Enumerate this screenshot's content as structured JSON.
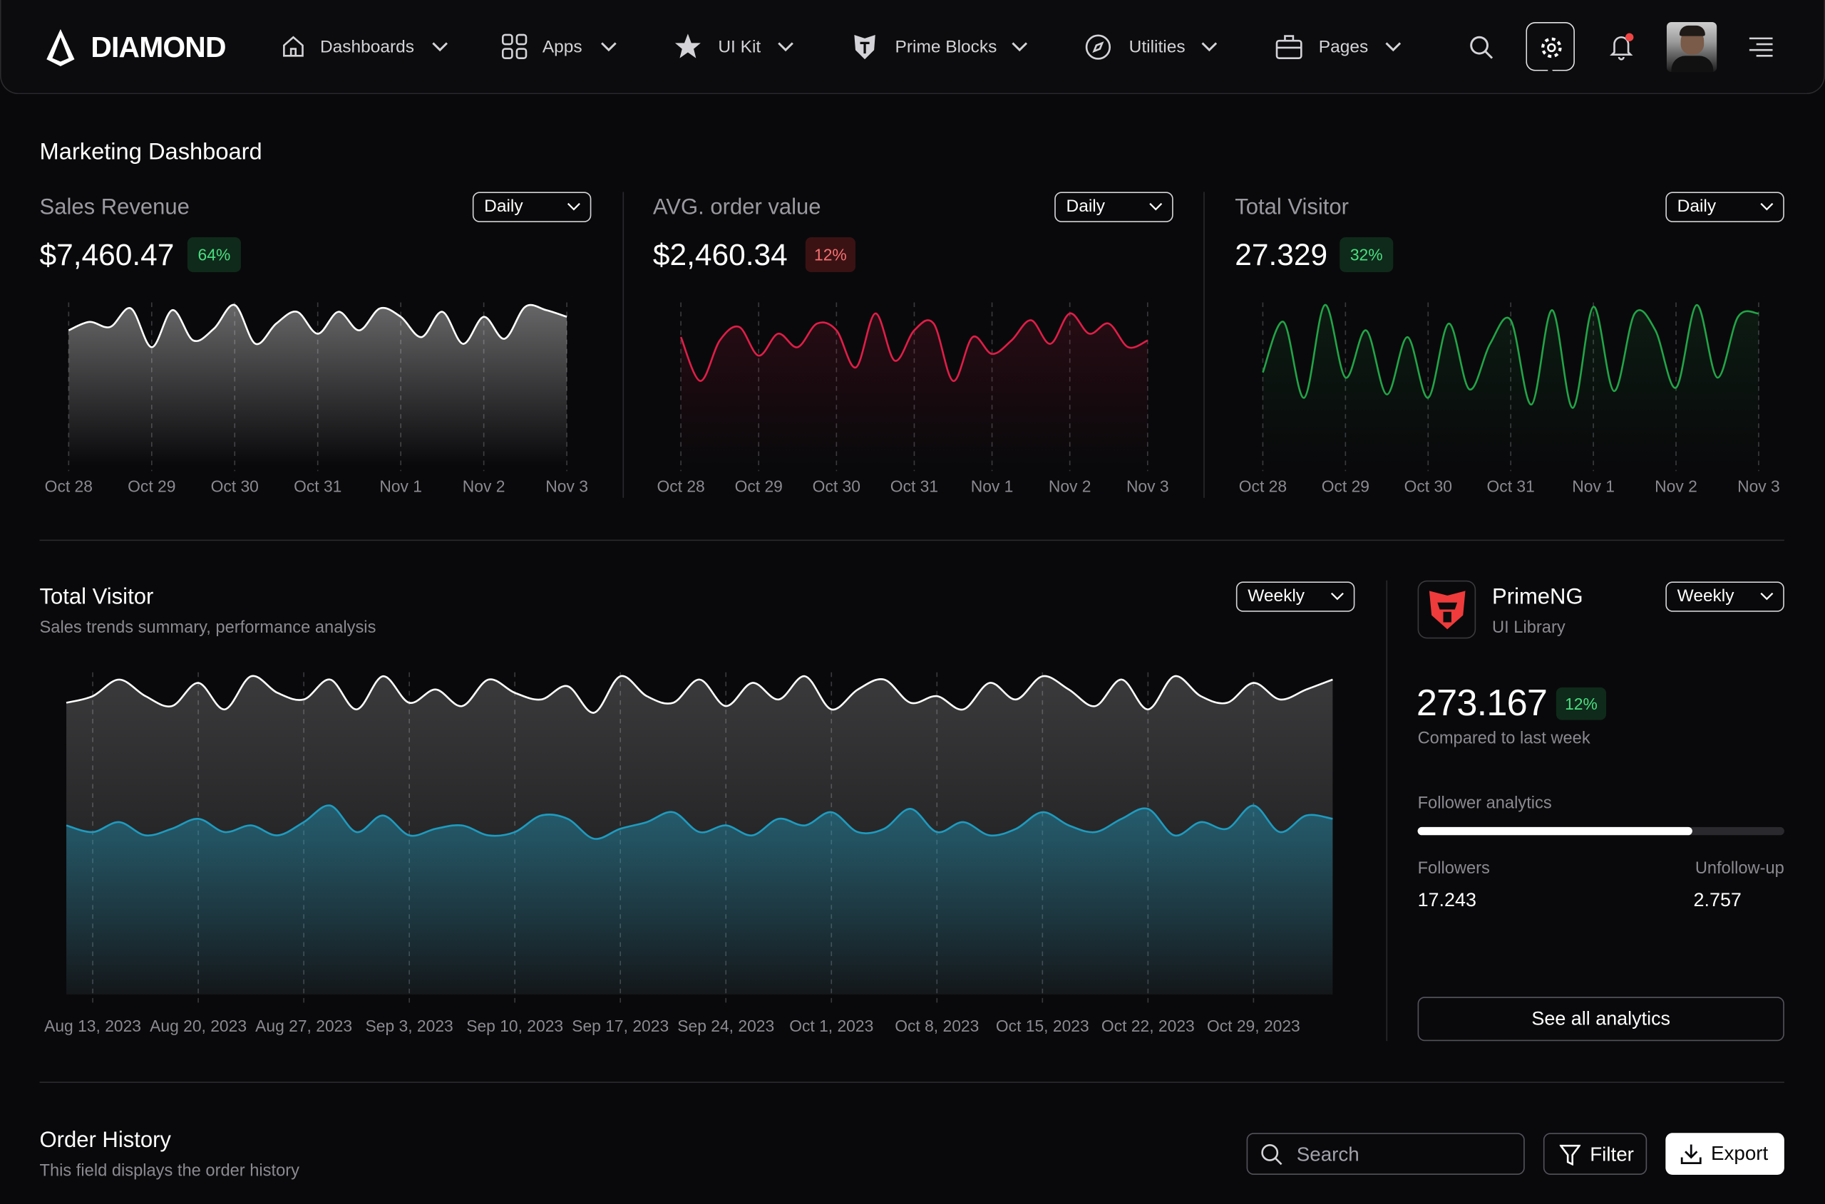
{
  "nav": {
    "brand": "DIAMOND",
    "items": [
      "Dashboards",
      "Apps",
      "UI Kit",
      "Prime Blocks",
      "Utilities",
      "Pages"
    ]
  },
  "page_title": "Marketing Dashboard",
  "cards": [
    {
      "period": "Daily",
      "value": "$7,460.47",
      "badge": "64%"
    },
    {
      "period": "Daily",
      "value": "$2,460.34",
      "badge": "12%"
    },
    {
      "period": "Daily",
      "value": "27.329",
      "badge": "32%"
    }
  ],
  "visitor_panel": {
    "period": "Weekly"
  },
  "chart_data": [
    {
      "type": "area",
      "title": "Sales Revenue",
      "xlim": [
        0,
        6
      ],
      "ylim": [
        0,
        100
      ],
      "xticks": [
        {
          "value": 0,
          "label": "Oct 28"
        },
        {
          "value": 1,
          "label": "Oct 29"
        },
        {
          "value": 2,
          "label": "Oct 30"
        },
        {
          "value": 3,
          "label": "Oct 31"
        },
        {
          "value": 4,
          "label": "Nov 1"
        },
        {
          "value": 5,
          "label": "Nov 2"
        },
        {
          "value": 6,
          "label": "Nov 3"
        }
      ],
      "x": [
        0,
        0.25,
        0.5,
        0.75,
        1,
        1.25,
        1.5,
        1.75,
        2,
        2.25,
        2.5,
        2.75,
        3,
        3.25,
        3.5,
        3.75,
        4,
        4.25,
        4.5,
        4.75,
        5,
        5.25,
        5.5,
        5.75,
        6
      ],
      "series": [
        {
          "color": "#ffffff",
          "values": [
            80,
            85,
            82,
            93,
            70,
            92,
            74,
            81,
            95,
            72,
            84,
            91,
            78,
            91,
            80,
            93,
            88,
            76,
            91,
            72,
            88,
            75,
            94,
            92,
            88
          ]
        }
      ]
    },
    {
      "type": "area",
      "title": "AVG. order value",
      "xlim": [
        0,
        6
      ],
      "ylim": [
        0,
        100
      ],
      "xticks": [
        {
          "value": 0,
          "label": "Oct 28"
        },
        {
          "value": 1,
          "label": "Oct 29"
        },
        {
          "value": 2,
          "label": "Oct 30"
        },
        {
          "value": 3,
          "label": "Oct 31"
        },
        {
          "value": 4,
          "label": "Nov 1"
        },
        {
          "value": 5,
          "label": "Nov 2"
        },
        {
          "value": 6,
          "label": "Nov 3"
        }
      ],
      "x": [
        0,
        0.25,
        0.5,
        0.75,
        1,
        1.25,
        1.5,
        1.75,
        2,
        2.25,
        2.5,
        2.75,
        3,
        3.25,
        3.5,
        3.75,
        4,
        4.25,
        4.5,
        4.75,
        5,
        5.25,
        5.5,
        5.75,
        6
      ],
      "series": [
        {
          "color": "#e11d48",
          "values": [
            76,
            50,
            74,
            82,
            65,
            78,
            70,
            84,
            80,
            58,
            90,
            62,
            80,
            84,
            50,
            76,
            66,
            74,
            86,
            72,
            90,
            78,
            84,
            70,
            74
          ]
        }
      ]
    },
    {
      "type": "area",
      "title": "Total Visitor",
      "xlim": [
        0,
        6
      ],
      "ylim": [
        0,
        100
      ],
      "xticks": [
        {
          "value": 0,
          "label": "Oct 28"
        },
        {
          "value": 1,
          "label": "Oct 29"
        },
        {
          "value": 2,
          "label": "Oct 30"
        },
        {
          "value": 3,
          "label": "Oct 31"
        },
        {
          "value": 4,
          "label": "Nov 1"
        },
        {
          "value": 5,
          "label": "Nov 2"
        },
        {
          "value": 6,
          "label": "Nov 3"
        }
      ],
      "x": [
        0,
        0.25,
        0.5,
        0.75,
        1,
        1.25,
        1.5,
        1.75,
        2,
        2.25,
        2.5,
        2.75,
        3,
        3.25,
        3.5,
        3.75,
        4,
        4.25,
        4.5,
        4.75,
        5,
        5.25,
        5.5,
        5.75,
        6
      ],
      "series": [
        {
          "color": "#22a447",
          "values": [
            55,
            85,
            40,
            95,
            52,
            80,
            42,
            76,
            40,
            84,
            45,
            72,
            86,
            36,
            92,
            34,
            94,
            44,
            90,
            80,
            46,
            95,
            52,
            88,
            90
          ]
        }
      ]
    },
    {
      "type": "area",
      "title": "Total Visitor",
      "subtitle": "Sales trends summary, performance analysis",
      "xlim": [
        -0.25,
        11.75
      ],
      "ylim": [
        0,
        100
      ],
      "xticks": [
        {
          "value": 0,
          "label": "Aug 13, 2023"
        },
        {
          "value": 1,
          "label": "Aug 20, 2023"
        },
        {
          "value": 2,
          "label": "Aug 27, 2023"
        },
        {
          "value": 3,
          "label": "Sep 3, 2023"
        },
        {
          "value": 4,
          "label": "Sep 10, 2023"
        },
        {
          "value": 5,
          "label": "Sep 17, 2023"
        },
        {
          "value": 6,
          "label": "Sep 24, 2023"
        },
        {
          "value": 7,
          "label": "Oct 1, 2023"
        },
        {
          "value": 8,
          "label": "Oct 8, 2023"
        },
        {
          "value": 9,
          "label": "Oct 15, 2023"
        },
        {
          "value": 10,
          "label": "Oct 22, 2023"
        },
        {
          "value": 11,
          "label": "Oct 29, 2023"
        }
      ],
      "x": [
        -0.25,
        0,
        0.25,
        0.5,
        0.75,
        1,
        1.25,
        1.5,
        1.75,
        2,
        2.25,
        2.5,
        2.75,
        3,
        3.25,
        3.5,
        3.75,
        4,
        4.25,
        4.5,
        4.75,
        5,
        5.25,
        5.5,
        5.75,
        6,
        6.25,
        6.5,
        6.75,
        7,
        7.25,
        7.5,
        7.75,
        8,
        8.25,
        8.5,
        8.75,
        9,
        9.25,
        9.5,
        9.75,
        10,
        10.25,
        10.5,
        10.75,
        11,
        11.25,
        11.5,
        11.75
      ],
      "series": [
        {
          "color": "#ffffff",
          "values": [
            88,
            90,
            95,
            90,
            87,
            94,
            86,
            96,
            91,
            89,
            95,
            86,
            96,
            88,
            92,
            87,
            95,
            91,
            89,
            93,
            85,
            96,
            90,
            88,
            95,
            87,
            94,
            89,
            96,
            86,
            92,
            95,
            88,
            90,
            86,
            94,
            89,
            96,
            92,
            87,
            95,
            86,
            96,
            90,
            88,
            94,
            89,
            92,
            95
          ]
        },
        {
          "color": "#1e9bbf",
          "values": [
            51,
            49,
            52,
            48,
            50,
            53,
            49,
            51,
            48,
            52,
            57,
            49,
            54,
            48,
            50,
            51,
            48,
            49,
            54,
            53,
            47,
            50,
            52,
            55,
            49,
            51,
            48,
            53,
            51,
            55,
            49,
            50,
            56,
            49,
            52,
            48,
            50,
            55,
            51,
            49,
            53,
            56,
            48,
            52,
            50,
            57,
            49,
            54,
            53
          ]
        }
      ]
    }
  ],
  "library": {
    "name": "PrimeNG",
    "subtitle": "UI Library",
    "period": "Weekly",
    "value": "273.167",
    "badge": "12%",
    "caption": "Compared to last week",
    "progress_label": "Follower analytics",
    "progress": 75,
    "stats": [
      {
        "label": "Followers",
        "value": "17.243"
      },
      {
        "label": "Unfollow-up",
        "value": "2.757"
      }
    ],
    "button": "See all analytics"
  },
  "orders": {
    "title": "Order History",
    "subtitle": "This field displays the order history",
    "search_placeholder": "Search",
    "filter": "Filter",
    "export": "Export"
  }
}
